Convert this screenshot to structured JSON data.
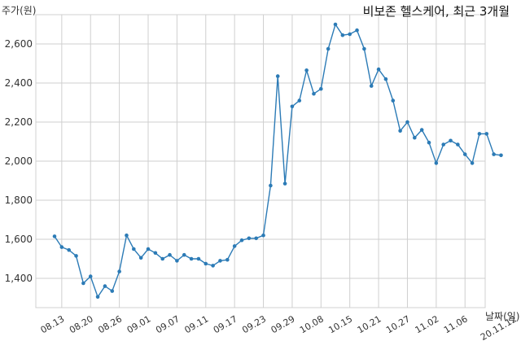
{
  "chart_data": {
    "type": "line",
    "title": "비보존 헬스케어, 최근 3개월",
    "ylabel": "주가(원)",
    "xlabel": "날짜(일)",
    "ylim": [
      1250,
      2750
    ],
    "yticks": [
      1400,
      1600,
      1800,
      2000,
      2200,
      2400,
      2600
    ],
    "ytick_labels": [
      "1,400",
      "1,600",
      "1,800",
      "2,000",
      "2,200",
      "2,400",
      "2,600"
    ],
    "xlim": [
      -2.6,
      59.8
    ],
    "xtick_positions": [
      1,
      5,
      9,
      13,
      17,
      21,
      25,
      29,
      33,
      37,
      41,
      45,
      49,
      53,
      57
    ],
    "xtick_labels": [
      "08.13",
      "08.20",
      "08.26",
      "09.01",
      "09.07",
      "09.11",
      "09.17",
      "09.23",
      "09.29",
      "10.08",
      "10.15",
      "10.21",
      "10.27",
      "11.02",
      "11.06"
    ],
    "last_label": "20.11.12",
    "grid": true,
    "color": "#2c7bb6",
    "series": [
      {
        "values": [
          1615,
          1560,
          1545,
          1515,
          1375,
          1410,
          1305,
          1360,
          1335,
          1435,
          1620,
          1550,
          1505,
          1550,
          1530,
          1500,
          1520,
          1490,
          1520,
          1500,
          1500,
          1475,
          1465,
          1490,
          1495,
          1565,
          1595,
          1605,
          1605,
          1620,
          1875,
          2435,
          1885,
          2280,
          2310,
          2465,
          2345,
          2370,
          2575,
          2700,
          2645,
          2650,
          2670,
          2575,
          2385,
          2470,
          2420,
          2310,
          2155,
          2200,
          2120,
          2160,
          2095,
          1990,
          2085,
          2105,
          2085,
          2035,
          1990,
          2140,
          2140,
          2035,
          2030
        ]
      }
    ]
  }
}
